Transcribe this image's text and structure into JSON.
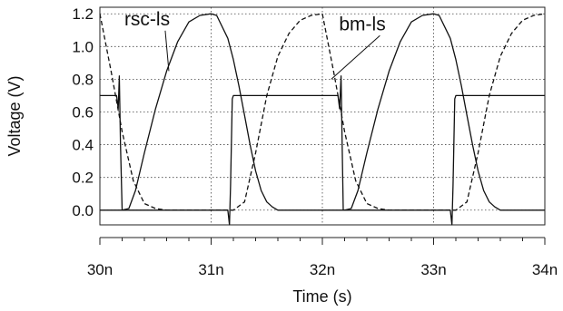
{
  "chart_data": {
    "type": "line",
    "xlabel": "Time (s)",
    "ylabel": "Voltage (V)",
    "xlim": [
      30,
      34
    ],
    "ylim": [
      -0.09,
      1.24
    ],
    "x_ticks": [
      {
        "value": 30,
        "label": "30n"
      },
      {
        "value": 31,
        "label": "31n"
      },
      {
        "value": 32,
        "label": "32n"
      },
      {
        "value": 33,
        "label": "33n"
      },
      {
        "value": 34,
        "label": "34n"
      }
    ],
    "y_ticks": [
      {
        "value": 0.0,
        "label": "0.0"
      },
      {
        "value": 0.2,
        "label": "0.2"
      },
      {
        "value": 0.4,
        "label": "0.4"
      },
      {
        "value": 0.6,
        "label": "0.6"
      },
      {
        "value": 0.8,
        "label": "0.8"
      },
      {
        "value": 1.0,
        "label": "1.0"
      },
      {
        "value": 1.2,
        "label": "1.2"
      }
    ],
    "grid": true,
    "series": [
      {
        "style": "solid",
        "x": [
          30.0,
          30.15,
          30.165,
          30.175,
          30.185,
          30.2,
          31.0,
          31.15,
          31.165,
          31.175,
          31.19,
          31.2,
          32.0,
          32.14,
          32.155,
          32.168,
          32.178,
          32.188,
          32.2,
          33.0,
          33.15,
          33.165,
          33.175,
          33.19,
          33.2,
          34.0
        ],
        "y": [
          0.7,
          0.7,
          0.62,
          0.82,
          0.4,
          0.0,
          0.0,
          0.0,
          -0.09,
          0.15,
          0.68,
          0.7,
          0.7,
          0.7,
          0.62,
          0.82,
          0.4,
          0.0,
          0.0,
          0.0,
          0.0,
          -0.09,
          0.15,
          0.68,
          0.7,
          0.7
        ]
      },
      {
        "style": "solid",
        "x": [
          30.0,
          30.15,
          30.2,
          30.26,
          30.32,
          30.4,
          30.5,
          30.6,
          30.7,
          30.8,
          30.9,
          31.0,
          31.05,
          31.15,
          31.2,
          31.25,
          31.3,
          31.35,
          31.4,
          31.45,
          31.5,
          31.55,
          31.6,
          31.7,
          31.8,
          31.9,
          32.0,
          32.15,
          32.2,
          32.26,
          32.32,
          32.4,
          32.5,
          32.6,
          32.7,
          32.8,
          32.9,
          33.0,
          33.05,
          33.15,
          33.2,
          33.25,
          33.3,
          33.35,
          33.4,
          33.45,
          33.5,
          33.55,
          33.6,
          33.7,
          33.8,
          33.9,
          34.0
        ],
        "y": [
          0.0,
          0.0,
          0.0,
          0.01,
          0.12,
          0.35,
          0.62,
          0.85,
          1.03,
          1.15,
          1.19,
          1.2,
          1.19,
          1.05,
          0.92,
          0.76,
          0.58,
          0.4,
          0.24,
          0.12,
          0.05,
          0.02,
          0.0,
          0.0,
          0.0,
          0.0,
          0.0,
          0.0,
          0.0,
          0.01,
          0.12,
          0.35,
          0.62,
          0.85,
          1.03,
          1.15,
          1.19,
          1.2,
          1.19,
          1.05,
          0.92,
          0.76,
          0.58,
          0.4,
          0.24,
          0.12,
          0.05,
          0.02,
          0.0,
          0.0,
          0.0,
          0.0,
          0.0
        ]
      },
      {
        "style": "dashed",
        "x": [
          30.0,
          30.1,
          30.2,
          30.3,
          30.4,
          30.5,
          30.6,
          30.8,
          31.0,
          31.2,
          31.3,
          31.4,
          31.5,
          31.6,
          31.7,
          31.8,
          31.9,
          32.0,
          32.1,
          32.2,
          32.3,
          32.4,
          32.5,
          32.6,
          32.8,
          33.0,
          33.2,
          33.3,
          33.4,
          33.5,
          33.6,
          33.7,
          33.8,
          33.9,
          34.0
        ],
        "y": [
          1.2,
          0.85,
          0.48,
          0.18,
          0.04,
          0.01,
          0.0,
          0.0,
          0.0,
          0.0,
          0.05,
          0.35,
          0.7,
          0.94,
          1.08,
          1.16,
          1.19,
          1.2,
          0.85,
          0.48,
          0.18,
          0.04,
          0.01,
          0.0,
          0.0,
          0.0,
          0.0,
          0.05,
          0.35,
          0.7,
          0.94,
          1.08,
          1.16,
          1.19,
          1.2
        ]
      }
    ],
    "annotations": [
      {
        "text": "rsc-ls",
        "x": 30.22,
        "y": 1.13,
        "arrow_to": [
          30.62,
          0.85
        ]
      },
      {
        "text": "bm-ls",
        "x": 32.15,
        "y": 1.1,
        "arrow_to": [
          32.08,
          0.8
        ]
      }
    ]
  }
}
